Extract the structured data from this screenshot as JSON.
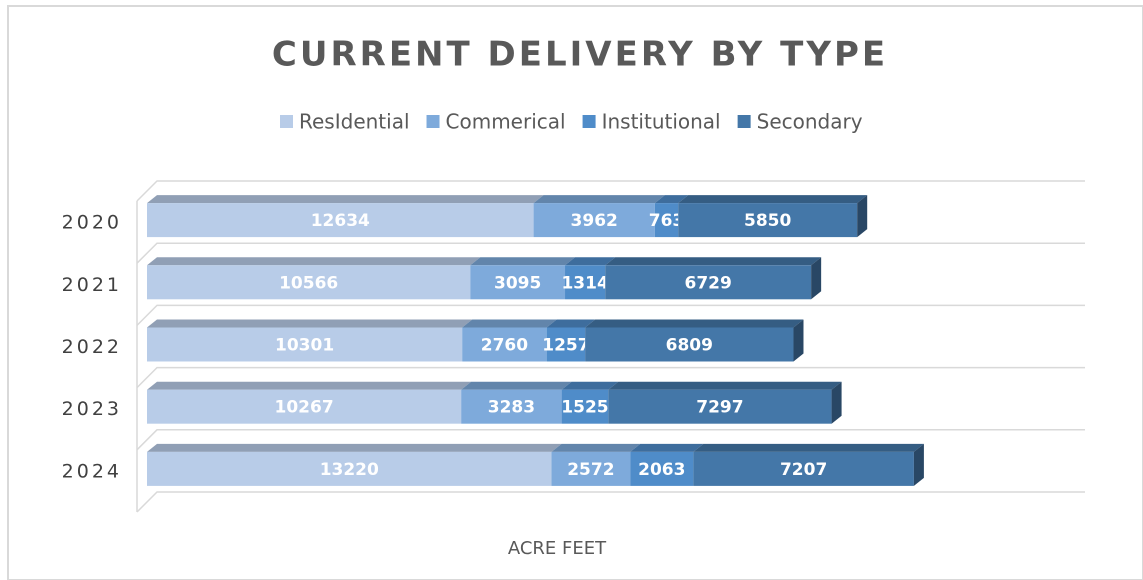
{
  "chart_data": {
    "type": "stacked-bar-horizontal",
    "title": "CURRENT DELIVERY BY TYPE",
    "x_label": "ACRE FEET",
    "categories": [
      "2020",
      "2021",
      "2022",
      "2023",
      "2024"
    ],
    "series": [
      {
        "name": "ResIdential",
        "color": "#b8cce8",
        "values": [
          12634,
          10566,
          10301,
          10267,
          13220
        ]
      },
      {
        "name": "Commerical",
        "color": "#7eaadb",
        "values": [
          3962,
          3095,
          2760,
          3283,
          2572
        ]
      },
      {
        "name": "Institutional",
        "color": "#4f8cc9",
        "values": [
          763,
          1314,
          1257,
          1525,
          2063
        ]
      },
      {
        "name": "Secondary",
        "color": "#4477a8",
        "values": [
          5850,
          6729,
          6809,
          7297,
          7207
        ]
      }
    ],
    "xlim": [
      0,
      30000
    ],
    "legend": "top"
  }
}
